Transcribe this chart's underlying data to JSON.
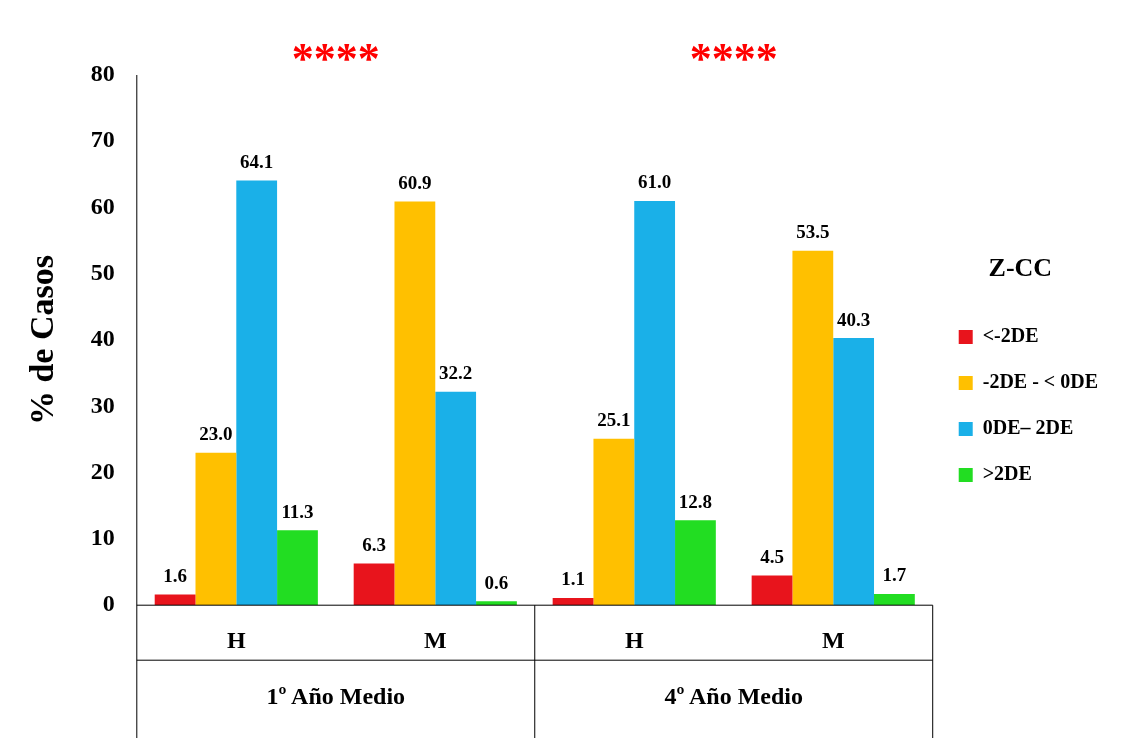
{
  "chart_data": {
    "type": "bar",
    "ylabel": "% de Casos",
    "legend_title": "Z-CC",
    "categories": [
      "H",
      "M",
      "H",
      "M"
    ],
    "series": [
      {
        "name": "<-2DE",
        "color": "#e8141c",
        "values": [
          1.6,
          6.3,
          1.1,
          4.5
        ],
        "value_labels": [
          "1.6",
          "6.3",
          "1.1",
          "4.5"
        ]
      },
      {
        "name": "-2DE - < 0DE",
        "color": "#ffc000",
        "values": [
          23,
          60.9,
          25.1,
          53.5
        ],
        "value_labels": [
          "23.0",
          "60.9",
          "25.1",
          "53.5"
        ]
      },
      {
        "name": "0DE– 2DE",
        "color": "#1ab0e8",
        "values": [
          64.1,
          32.2,
          61,
          40.3
        ],
        "value_labels": [
          "64.1",
          "32.2",
          "61.0",
          "40.3"
        ]
      },
      {
        "name": ">2DE",
        "color": "#22dd22",
        "values": [
          11.3,
          0.6,
          12.8,
          1.7
        ],
        "value_labels": [
          "11.3",
          "0.6",
          "12.8",
          "1.7"
        ]
      }
    ],
    "ylim": [
      0,
      80
    ],
    "yticks": [
      0,
      10,
      20,
      30,
      40,
      50,
      60,
      70,
      80
    ],
    "grid": false,
    "legend": "right",
    "annotations": [
      "****",
      "****",
      "1º Año Medio",
      "4º Año Medio"
    ]
  }
}
